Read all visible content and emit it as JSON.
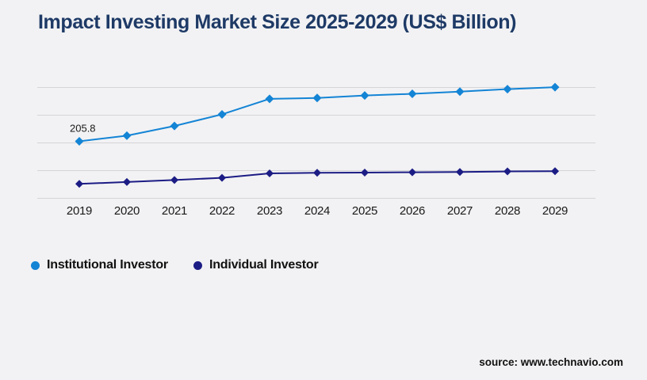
{
  "source_attribution": "source: www.technavio.com",
  "chart_data": {
    "type": "line",
    "title": "Impact Investing Market Size 2025-2029 (US$ Billion)",
    "categories": [
      "2019",
      "2020",
      "2021",
      "2022",
      "2023",
      "2024",
      "2025",
      "2026",
      "2027",
      "2028",
      "2029"
    ],
    "series": [
      {
        "name": "Institutional Investor",
        "color": "#1484d5",
        "marker": "diamond",
        "values": [
          205.8,
          226,
          261,
          303,
          359,
          362,
          371,
          377,
          385,
          394,
          401
        ]
      },
      {
        "name": "Individual Investor",
        "color": "#1c1c85",
        "marker": "diamond",
        "values": [
          52,
          59,
          66,
          74,
          90,
          92,
          93,
          94,
          95,
          97,
          98
        ]
      }
    ],
    "xlabel": "",
    "ylabel": "",
    "ylim": [
      0,
      420
    ],
    "gridline_values": [
      0,
      100,
      200,
      300,
      400
    ],
    "y_axis_labels_visible": false,
    "grid": "horizontal",
    "legend_position": "bottom-left",
    "data_labels": [
      {
        "series_index": 0,
        "category_index": 0,
        "text": "205.8"
      }
    ],
    "colors": {
      "background": "#f2f2f4",
      "title": "#1e3a66",
      "gridline": "#d5d5d7",
      "axis_text": "#1a1a1a"
    }
  }
}
